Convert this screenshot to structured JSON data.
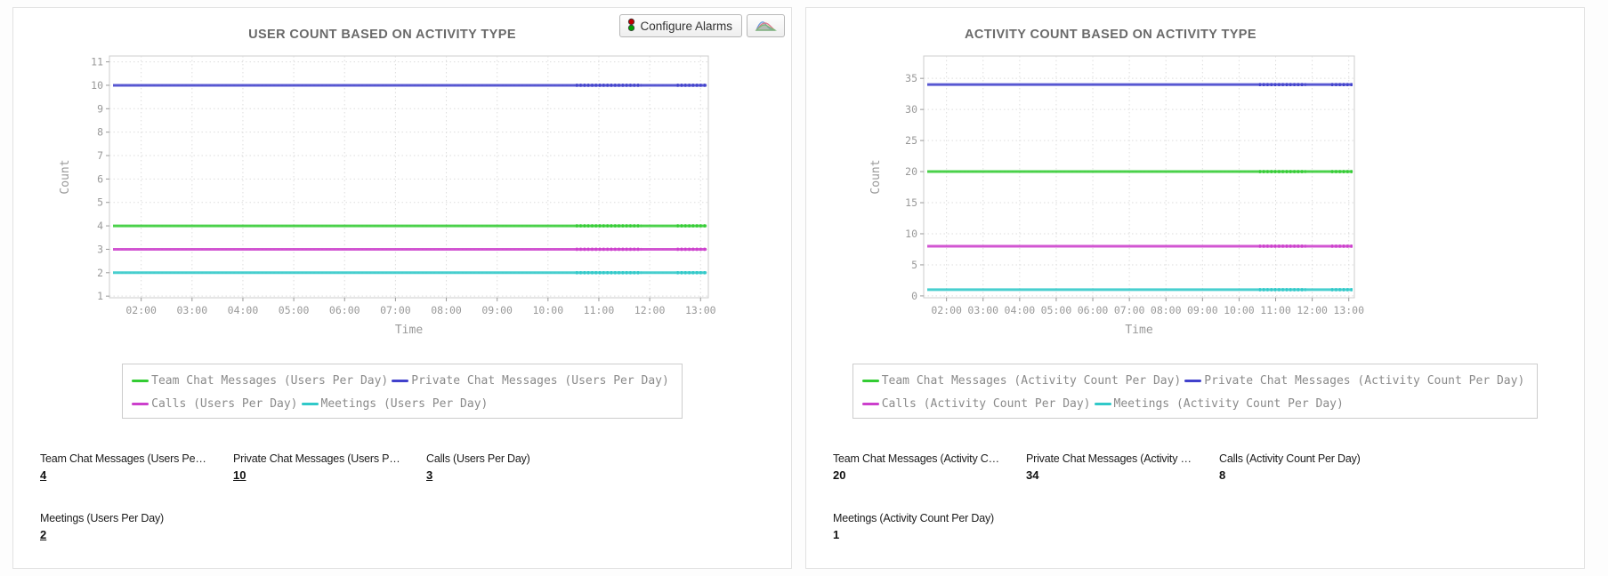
{
  "toolbar": {
    "configure_alarms_label": "Configure Alarms"
  },
  "colors": {
    "series_green": "#33cc33",
    "series_blue": "#4141cc",
    "series_magenta": "#cc3fcc",
    "series_cyan": "#30c9c9",
    "grid_line": "#dddddd",
    "plot_border": "#cccccc",
    "axis_text": "#999999",
    "title_text": "#6a6a6a",
    "legend_text": "#8a8a8a"
  },
  "chart_data": [
    {
      "type": "line",
      "title": "USER COUNT BASED ON ACTIVITY TYPE",
      "xlabel": "Time",
      "ylabel": "Count",
      "x": [
        "02:00",
        "03:00",
        "04:00",
        "05:00",
        "06:00",
        "07:00",
        "08:00",
        "09:00",
        "10:00",
        "11:00",
        "12:00",
        "13:00"
      ],
      "y_ticks": [
        1,
        2,
        3,
        4,
        5,
        6,
        7,
        8,
        9,
        10,
        11
      ],
      "ylim": [
        0.93,
        11.25
      ],
      "grid": true,
      "legend_position": "bottom",
      "series": [
        {
          "name": "Team Chat Messages (Users Per Day)",
          "color": "#33cc33",
          "constant_value": 4
        },
        {
          "name": "Private Chat Messages (Users Per Day)",
          "color": "#4141cc",
          "constant_value": 10
        },
        {
          "name": "Calls (Users Per Day)",
          "color": "#cc3fcc",
          "constant_value": 3
        },
        {
          "name": "Meetings (Users Per Day)",
          "color": "#30c9c9",
          "constant_value": 2
        }
      ]
    },
    {
      "type": "line",
      "title": "ACTIVITY COUNT BASED ON ACTIVITY TYPE",
      "xlabel": "Time",
      "ylabel": "Count",
      "x": [
        "02:00",
        "03:00",
        "04:00",
        "05:00",
        "06:00",
        "07:00",
        "08:00",
        "09:00",
        "10:00",
        "11:00",
        "12:00",
        "13:00"
      ],
      "y_ticks": [
        0,
        5,
        10,
        15,
        20,
        25,
        30,
        35
      ],
      "ylim": [
        -0.3,
        38.6
      ],
      "grid": true,
      "legend_position": "bottom",
      "series": [
        {
          "name": "Team Chat Messages (Activity Count Per Day)",
          "color": "#33cc33",
          "constant_value": 20
        },
        {
          "name": "Private Chat Messages (Activity Count Per Day)",
          "color": "#4141cc",
          "constant_value": 34
        },
        {
          "name": "Calls (Activity Count Per Day)",
          "color": "#cc3fcc",
          "constant_value": 8
        },
        {
          "name": "Meetings (Activity Count Per Day)",
          "color": "#30c9c9",
          "constant_value": 1
        }
      ]
    }
  ],
  "panels": [
    {
      "values_underlined": true,
      "stats": [
        {
          "label": "Team Chat Messages (Users Pe…",
          "value": "4"
        },
        {
          "label": "Private Chat Messages (Users P…",
          "value": "10"
        },
        {
          "label": "Calls (Users Per Day)",
          "value": "3"
        },
        {
          "label": "Meetings (Users Per Day)",
          "value": "2"
        }
      ]
    },
    {
      "values_underlined": false,
      "stats": [
        {
          "label": "Team Chat Messages (Activity C…",
          "value": "20"
        },
        {
          "label": "Private Chat Messages (Activity …",
          "value": "34"
        },
        {
          "label": "Calls (Activity Count Per Day)",
          "value": "8"
        },
        {
          "label": "Meetings (Activity Count Per Day)",
          "value": "1"
        }
      ]
    }
  ]
}
